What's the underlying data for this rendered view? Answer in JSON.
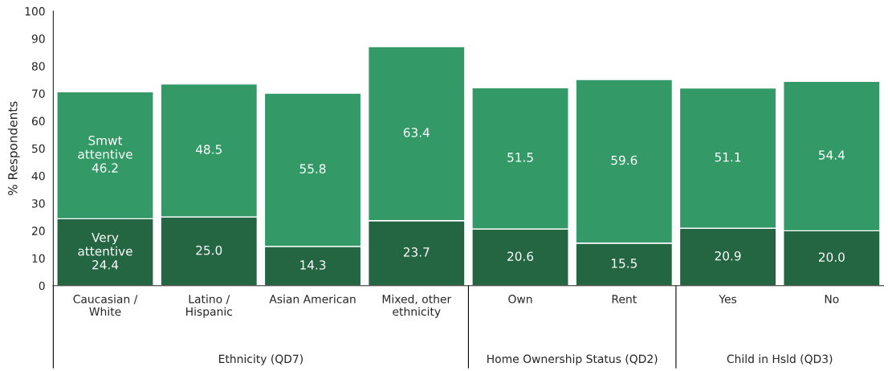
{
  "chart_data": {
    "type": "bar",
    "stacked": true,
    "ylabel": "% Respondents",
    "categories": [
      "Caucasian /\nWhite",
      "Latino /\nHispanic",
      "Asian American",
      "Mixed, other\nethnicity",
      "Own",
      "Rent",
      "Yes",
      "No"
    ],
    "series": [
      {
        "name": "Very attentive",
        "color": "#236641",
        "values": [
          24.4,
          25.0,
          14.3,
          23.7,
          20.6,
          15.5,
          20.9,
          20.0
        ]
      },
      {
        "name": "Smwt attentive",
        "color": "#339966",
        "values": [
          46.2,
          48.5,
          55.8,
          63.4,
          51.5,
          59.6,
          51.1,
          54.4
        ]
      }
    ],
    "value_labels": [
      [
        "24.4",
        "25.0",
        "14.3",
        "23.7",
        "20.6",
        "15.5",
        "20.9",
        "20.0"
      ],
      [
        "46.2",
        "48.5",
        "55.8",
        "63.4",
        "51.5",
        "59.6",
        "51.1",
        "54.4"
      ]
    ],
    "ylim": [
      0,
      100
    ],
    "yticks": [
      0,
      10,
      20,
      30,
      40,
      50,
      60,
      70,
      80,
      90,
      100
    ],
    "grid": false,
    "legend": false,
    "annotations": [
      "Ethnicity (QD7)",
      "Home Ownership Status (QD2)",
      "Child in Hsld (QD3)"
    ]
  }
}
